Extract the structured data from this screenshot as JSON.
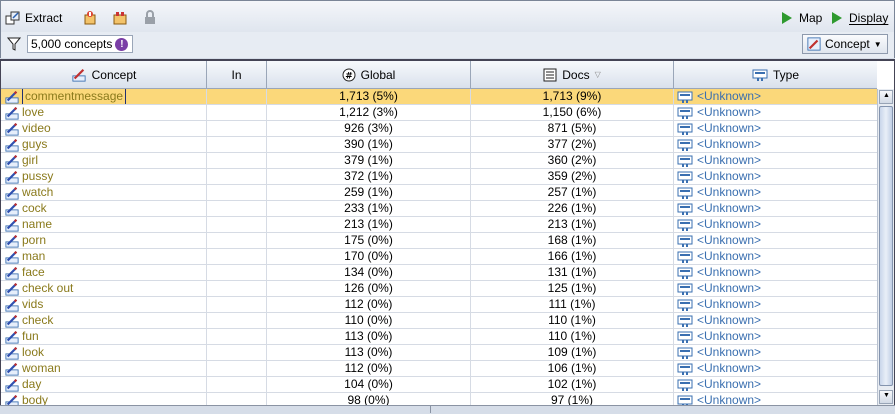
{
  "toolbar": {
    "extract_label": "Extract",
    "map_label": "Map",
    "display_label": "Display"
  },
  "filter": {
    "count_label": "5,000 concepts",
    "badge": "!",
    "dropdown_label": "Concept"
  },
  "columns": {
    "concept": "Concept",
    "in": "In",
    "global": "Global",
    "docs": "Docs",
    "type": "Type"
  },
  "rows": [
    {
      "concept": "commentmessage",
      "global": "1,713 (5%)",
      "docs": "1,713 (9%)",
      "type": "<Unknown>"
    },
    {
      "concept": "love",
      "global": "1,212 (3%)",
      "docs": "1,150 (6%)",
      "type": "<Unknown>"
    },
    {
      "concept": "video",
      "global": "926 (3%)",
      "docs": "871 (5%)",
      "type": "<Unknown>"
    },
    {
      "concept": "guys",
      "global": "390 (1%)",
      "docs": "377 (2%)",
      "type": "<Unknown>"
    },
    {
      "concept": "girl",
      "global": "379 (1%)",
      "docs": "360 (2%)",
      "type": "<Unknown>"
    },
    {
      "concept": "pussy",
      "global": "372 (1%)",
      "docs": "359 (2%)",
      "type": "<Unknown>"
    },
    {
      "concept": "watch",
      "global": "259 (1%)",
      "docs": "257 (1%)",
      "type": "<Unknown>"
    },
    {
      "concept": "cock",
      "global": "233 (1%)",
      "docs": "226 (1%)",
      "type": "<Unknown>"
    },
    {
      "concept": "name",
      "global": "213 (1%)",
      "docs": "213 (1%)",
      "type": "<Unknown>"
    },
    {
      "concept": "porn",
      "global": "175 (0%)",
      "docs": "168 (1%)",
      "type": "<Unknown>"
    },
    {
      "concept": "man",
      "global": "170 (0%)",
      "docs": "166 (1%)",
      "type": "<Unknown>"
    },
    {
      "concept": "face",
      "global": "134 (0%)",
      "docs": "131 (1%)",
      "type": "<Unknown>"
    },
    {
      "concept": "check out",
      "global": "126 (0%)",
      "docs": "125 (1%)",
      "type": "<Unknown>"
    },
    {
      "concept": "vids",
      "global": "112 (0%)",
      "docs": "111 (1%)",
      "type": "<Unknown>"
    },
    {
      "concept": "check",
      "global": "110 (0%)",
      "docs": "110 (1%)",
      "type": "<Unknown>"
    },
    {
      "concept": "fun",
      "global": "113 (0%)",
      "docs": "110 (1%)",
      "type": "<Unknown>"
    },
    {
      "concept": "look",
      "global": "113 (0%)",
      "docs": "109 (1%)",
      "type": "<Unknown>"
    },
    {
      "concept": "woman",
      "global": "112 (0%)",
      "docs": "106 (1%)",
      "type": "<Unknown>"
    },
    {
      "concept": "day",
      "global": "104 (0%)",
      "docs": "102 (1%)",
      "type": "<Unknown>"
    },
    {
      "concept": "body",
      "global": "98 (0%)",
      "docs": "97 (1%)",
      "type": "<Unknown>"
    }
  ],
  "selected_row": 0,
  "colors": {
    "selection": "#fbd87a",
    "concept_text": "#8a7a1c",
    "type_text": "#3a6fb0",
    "run_green": "#2f9a2f",
    "badge": "#7a3ea6"
  }
}
